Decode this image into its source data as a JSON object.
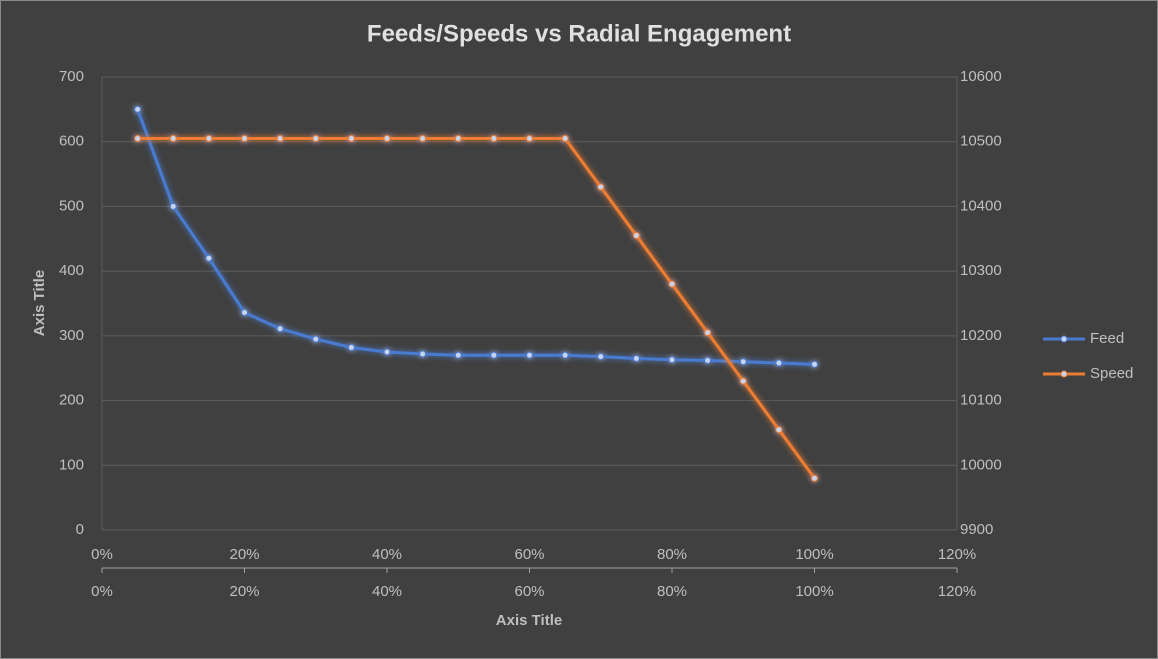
{
  "chart_data": {
    "type": "line",
    "title": "Feeds/Speeds vs Radial Engagement",
    "x_label": "Axis Title",
    "y_label": "Axis Title",
    "x": [
      5,
      10,
      15,
      20,
      25,
      30,
      35,
      40,
      45,
      50,
      55,
      60,
      65,
      70,
      75,
      80,
      85,
      90,
      95,
      100
    ],
    "series": [
      {
        "name": "Feed",
        "color": "#4a7bd0",
        "axis": "y",
        "values": [
          650,
          500,
          420,
          336,
          311,
          295,
          282,
          275,
          272,
          270,
          270,
          270,
          270,
          268,
          265,
          263,
          262,
          260,
          258,
          256
        ]
      },
      {
        "name": "Speed",
        "color": "#ed7d31",
        "axis": "y2",
        "values": [
          10505,
          10505,
          10505,
          10505,
          10505,
          10505,
          10505,
          10505,
          10505,
          10505,
          10505,
          10505,
          10505,
          10430,
          10355,
          10280,
          10205,
          10130,
          10055,
          9980
        ]
      }
    ],
    "xlim": [
      0,
      120
    ],
    "xticks": [
      {
        "value": 0,
        "label": "0%"
      },
      {
        "value": 20,
        "label": "20%"
      },
      {
        "value": 40,
        "label": "40%"
      },
      {
        "value": 60,
        "label": "60%"
      },
      {
        "value": 80,
        "label": "80%"
      },
      {
        "value": 100,
        "label": "100%"
      },
      {
        "value": 120,
        "label": "120%"
      }
    ],
    "x2lim": [
      0,
      120
    ],
    "x2ticks": [
      {
        "value": 0,
        "label": "0%"
      },
      {
        "value": 20,
        "label": "20%"
      },
      {
        "value": 40,
        "label": "40%"
      },
      {
        "value": 60,
        "label": "60%"
      },
      {
        "value": 80,
        "label": "80%"
      },
      {
        "value": 100,
        "label": "100%"
      },
      {
        "value": 120,
        "label": "120%"
      }
    ],
    "ylim": [
      0,
      700
    ],
    "yticks": [
      0,
      100,
      200,
      300,
      400,
      500,
      600,
      700
    ],
    "y2lim": [
      9900,
      10600
    ],
    "y2ticks": [
      9900,
      10000,
      10100,
      10200,
      10300,
      10400,
      10500,
      10600
    ],
    "grid": true,
    "legend": "right"
  }
}
